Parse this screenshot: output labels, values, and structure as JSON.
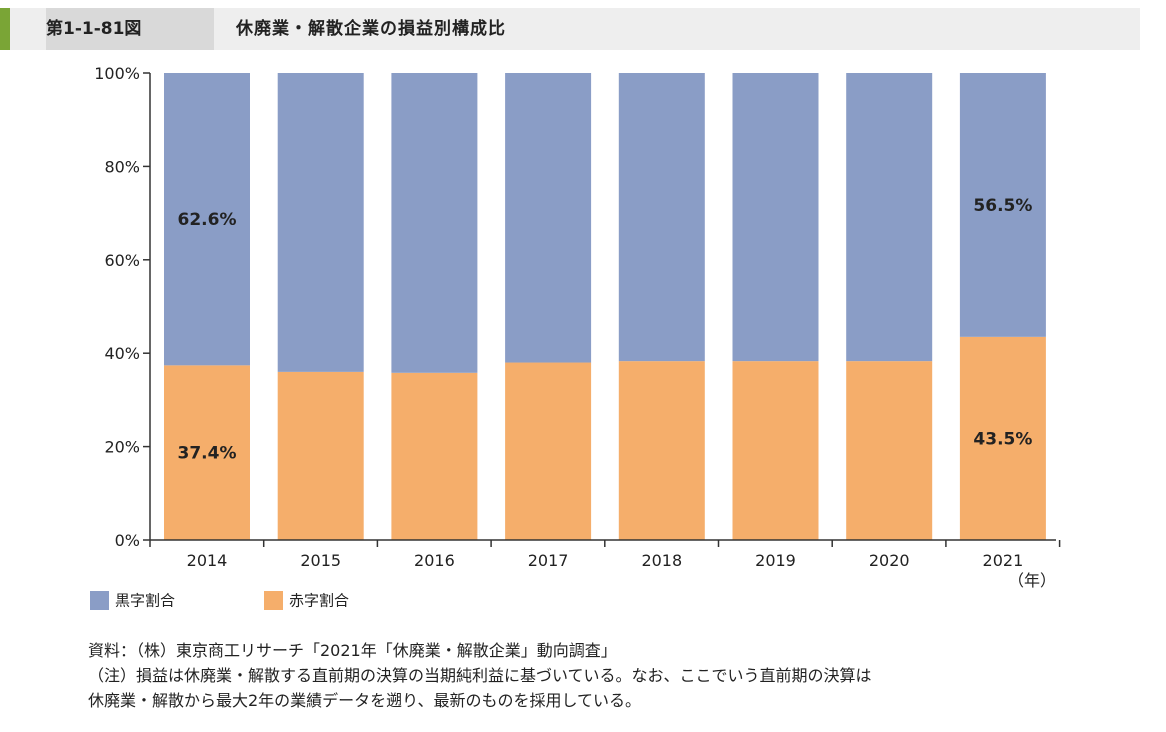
{
  "header": {
    "figure_number": "第1-1-81図",
    "title": "休廃業・解散企業の損益別構成比"
  },
  "colors": {
    "profit": "#8a9dc6",
    "loss": "#f5ae6b"
  },
  "chart_data": {
    "type": "bar",
    "stacked": true,
    "categories": [
      "2014",
      "2015",
      "2016",
      "2017",
      "2018",
      "2019",
      "2020",
      "2021"
    ],
    "x_unit": "（年）",
    "y_ticks": [
      "0%",
      "20%",
      "40%",
      "60%",
      "80%",
      "100%"
    ],
    "ylim": [
      0,
      100
    ],
    "series": [
      {
        "name": "赤字割合",
        "values": [
          37.4,
          36.0,
          35.8,
          38.0,
          38.3,
          38.3,
          38.3,
          43.5
        ]
      },
      {
        "name": "黒字割合",
        "values": [
          62.6,
          64.0,
          64.2,
          62.0,
          61.7,
          61.7,
          61.7,
          56.5
        ]
      }
    ],
    "data_labels": {
      "2014": {
        "profit": "62.6%",
        "loss": "37.4%"
      },
      "2021": {
        "profit": "56.5%",
        "loss": "43.5%"
      }
    },
    "legend": [
      {
        "name": "黒字割合"
      },
      {
        "name": "赤字割合"
      }
    ],
    "legend_position": "bottom-left"
  },
  "notes": {
    "source": "資料：（株）東京商工リサーチ「2021年「休廃業・解散企業」動向調査」",
    "note_line1": "（注）損益は休廃業・解散する直前期の決算の当期純利益に基づいている。なお、ここでいう直前期の決算は",
    "note_line2": "休廃業・解散から最大2年の業績データを遡り、最新のものを採用している。"
  }
}
